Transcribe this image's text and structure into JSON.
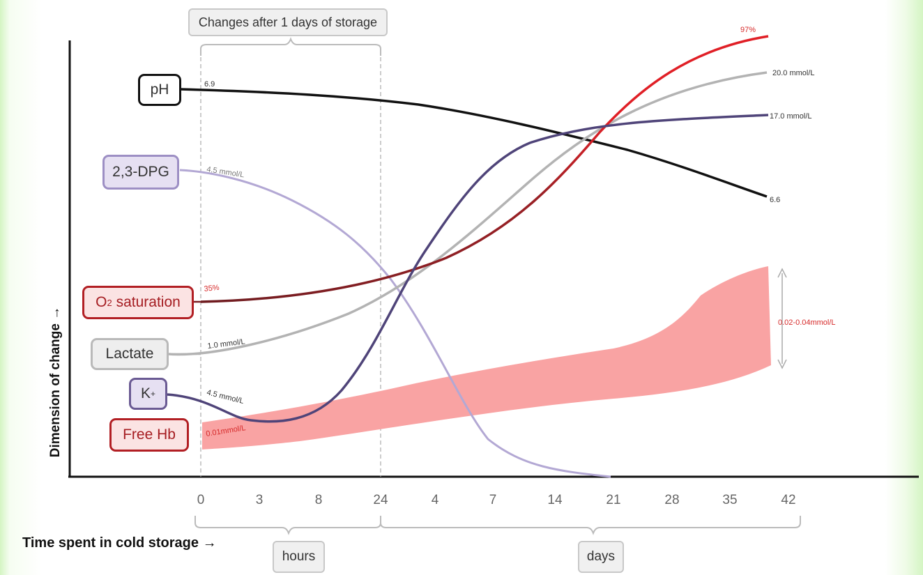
{
  "chart_data": {
    "type": "line",
    "title": "Changes after 1 days of storage",
    "xlabel": "Time spent in cold storage →",
    "ylabel": "Dimension of change →",
    "x_ticks": [
      "0",
      "3",
      "8",
      "24",
      "4",
      "7",
      "14",
      "21",
      "28",
      "35",
      "42"
    ],
    "x_groups": [
      {
        "label": "hours",
        "ticks": [
          "0",
          "3",
          "8",
          "24"
        ]
      },
      {
        "label": "days",
        "ticks": [
          "24",
          "4",
          "7",
          "14",
          "21",
          "28",
          "35",
          "42"
        ]
      }
    ],
    "series": [
      {
        "name": "pH",
        "color": "#111111",
        "start_label": "6.9",
        "end_label": "6.6",
        "start_value": 6.9,
        "end_value": 6.6
      },
      {
        "name": "2,3-DPG",
        "color": "#b3a8d4",
        "start_label": "4.5 mmol/L",
        "start_value": 4.5,
        "end_value": 0
      },
      {
        "name": "O",
        "name_sub": "2",
        "name_rest": " saturation",
        "color": "#7a1f24",
        "end_color": "#e01f26",
        "start_label": "35%",
        "end_label": "97%",
        "start_value": 35,
        "end_value": 97
      },
      {
        "name": "Lactate",
        "color": "#b3b3b3",
        "start_label": "1.0 mmol/L",
        "end_label": "20.0 mmol/L",
        "start_value": 1.0,
        "end_value": 20.0
      },
      {
        "name": "K",
        "name_sup": "+",
        "color": "#4f4479",
        "start_label": "4.5 mmol/L",
        "end_label": "17.0 mmol/L",
        "start_value": 4.5,
        "end_value": 17.0
      },
      {
        "name": "Free Hb",
        "color": "#f9a3a3",
        "start_label": "0.01mmol/L",
        "end_label": "0.02-0.04mmol/L",
        "start_value": 0.01,
        "end_value": "0.02-0.04"
      }
    ],
    "grid": false,
    "legend": "left"
  }
}
